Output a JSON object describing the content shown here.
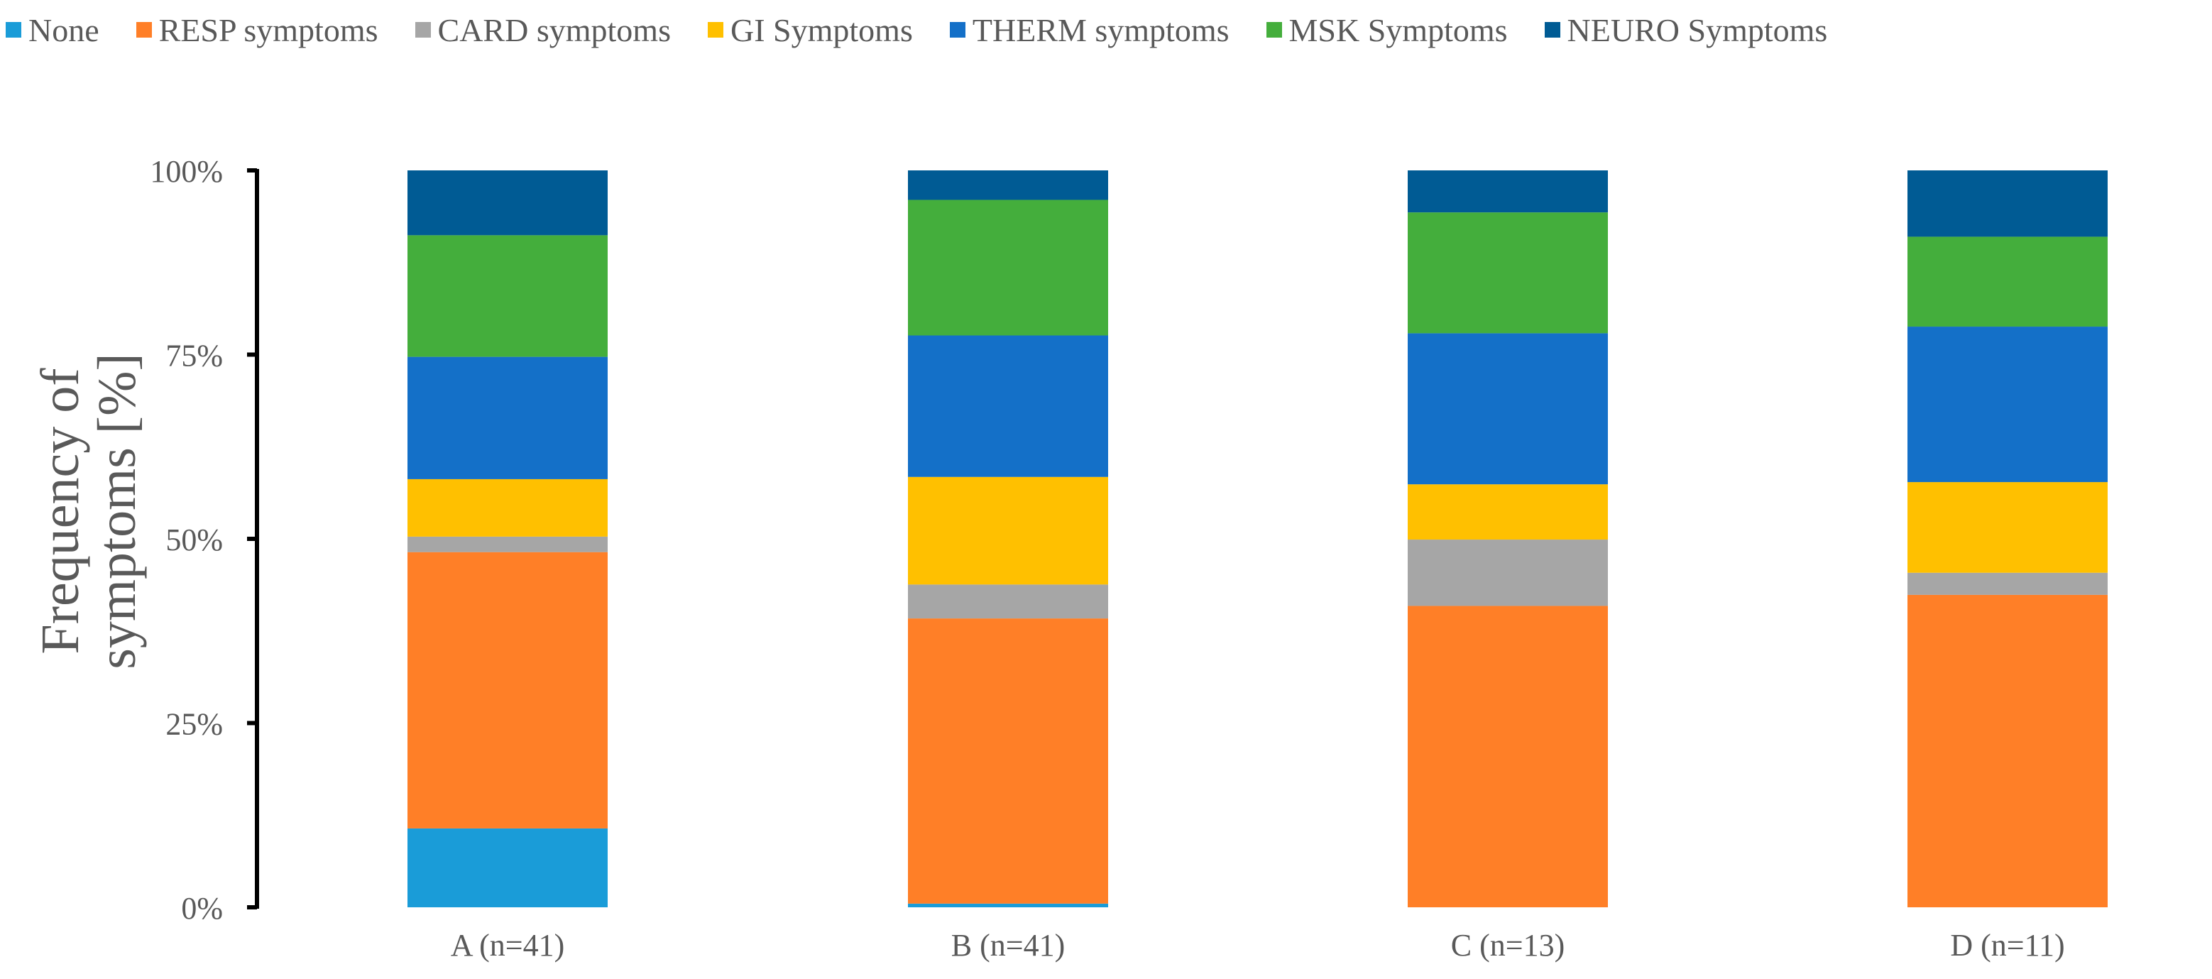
{
  "chart_data": {
    "type": "stacked-bar-100",
    "title": "",
    "xlabel": "",
    "ylabel": "Frequency of symptoms [%]",
    "ylim": [
      0,
      100
    ],
    "yticks": [
      0,
      25,
      50,
      75,
      100
    ],
    "ytick_labels": [
      "0%",
      "25%",
      "50%",
      "75%",
      "100%"
    ],
    "legend_position": "top",
    "categories": [
      "A (n=41)",
      "B (n=41)",
      "C (n=13)",
      "D (n=11)"
    ],
    "series": [
      {
        "name": "None",
        "color": "#1a9cd8",
        "values": [
          10.7,
          0.5,
          0,
          0
        ]
      },
      {
        "name": "RESP symptoms",
        "color": "#ff7f27",
        "values": [
          37.5,
          38.7,
          40.9,
          42.4
        ]
      },
      {
        "name": "CARD symptoms",
        "color": "#a6a6a6",
        "values": [
          2.1,
          4.6,
          9.0,
          3.0
        ]
      },
      {
        "name": "GI Symptoms",
        "color": "#ffc000",
        "values": [
          7.8,
          14.6,
          7.5,
          12.3
        ]
      },
      {
        "name": "THERM symptoms",
        "color": "#1470c8",
        "values": [
          16.6,
          19.2,
          20.5,
          21.1
        ]
      },
      {
        "name": "MSK Symptoms",
        "color": "#44ae3c",
        "values": [
          16.5,
          18.4,
          16.4,
          12.2
        ]
      },
      {
        "name": "NEURO Symptoms",
        "color": "#005b94",
        "values": [
          8.8,
          4.0,
          5.7,
          9.0
        ]
      }
    ]
  }
}
